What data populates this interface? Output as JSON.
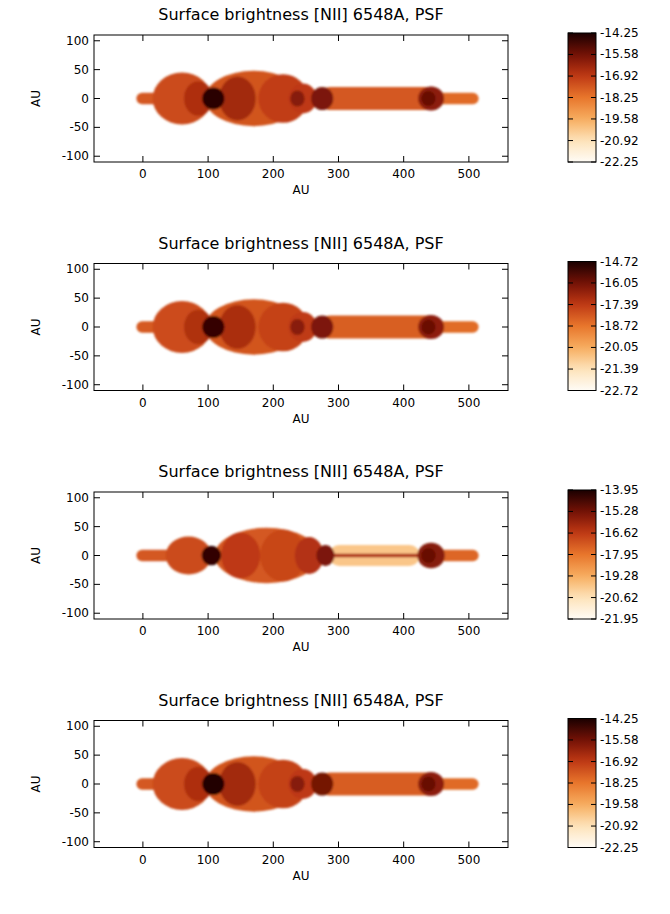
{
  "chart_data": [
    {
      "type": "heatmap",
      "title": "Surface brightness [NII] 6548A, PSF",
      "xlabel": "AU",
      "ylabel": "AU",
      "xlim": [
        -75,
        560
      ],
      "ylim": [
        -110,
        110
      ],
      "xticks": [
        0,
        100,
        200,
        300,
        400,
        500
      ],
      "yticks": [
        -100,
        -50,
        0,
        50,
        100
      ],
      "colorbar_range": [
        -22.25,
        -14.25
      ],
      "colorbar_ticks": [
        -14.25,
        -15.58,
        -16.92,
        -18.25,
        -19.58,
        -20.92,
        -22.25
      ],
      "beams": [
        {
          "x0": -10,
          "x1": 62,
          "half_width": 10,
          "value": -17.6
        },
        {
          "x0": 270,
          "x1": 455,
          "half_width": 20,
          "value": -17.6
        },
        {
          "x0": 440,
          "x1": 515,
          "half_width": 10,
          "value": -18.0
        }
      ],
      "knots": [
        {
          "x": 60,
          "y": 0,
          "rx": 45,
          "ry": 45,
          "value": -17.3
        },
        {
          "x": 170,
          "y": 0,
          "rx": 75,
          "ry": 48,
          "value": -17.5
        },
        {
          "x": 215,
          "y": 0,
          "rx": 38,
          "ry": 42,
          "value": -17.0
        },
        {
          "x": 85,
          "y": 0,
          "rx": 22,
          "ry": 30,
          "value": -16.6
        },
        {
          "x": 145,
          "y": 0,
          "rx": 28,
          "ry": 38,
          "value": -16.4
        },
        {
          "x": 245,
          "y": 0,
          "rx": 22,
          "ry": 26,
          "value": -16.9
        },
        {
          "x": 108,
          "y": 0,
          "rx": 17,
          "ry": 19,
          "value": -14.5
        },
        {
          "x": 237,
          "y": 0,
          "rx": 11,
          "ry": 14,
          "value": -15.9
        },
        {
          "x": 275,
          "y": 0,
          "rx": 17,
          "ry": 20,
          "value": -15.7
        },
        {
          "x": 442,
          "y": 0,
          "rx": 20,
          "ry": 21,
          "value": -16.0
        },
        {
          "x": 438,
          "y": 0,
          "rx": 11,
          "ry": 13,
          "value": -15.4
        }
      ]
    },
    {
      "type": "heatmap",
      "title": "Surface brightness [NII] 6548A, PSF",
      "xlabel": "AU",
      "ylabel": "AU",
      "xlim": [
        -75,
        560
      ],
      "ylim": [
        -110,
        110
      ],
      "xticks": [
        0,
        100,
        200,
        300,
        400,
        500
      ],
      "yticks": [
        -100,
        -50,
        0,
        50,
        100
      ],
      "colorbar_range": [
        -22.72,
        -14.72
      ],
      "colorbar_ticks": [
        -14.72,
        -16.05,
        -17.39,
        -18.72,
        -20.05,
        -21.39,
        -22.72
      ],
      "beams": [
        {
          "x0": -10,
          "x1": 62,
          "half_width": 10,
          "value": -18.1
        },
        {
          "x0": 270,
          "x1": 455,
          "half_width": 20,
          "value": -18.2
        },
        {
          "x0": 440,
          "x1": 515,
          "half_width": 10,
          "value": -18.5
        }
      ],
      "knots": [
        {
          "x": 60,
          "y": 0,
          "rx": 45,
          "ry": 45,
          "value": -17.8
        },
        {
          "x": 170,
          "y": 0,
          "rx": 75,
          "ry": 48,
          "value": -18.0
        },
        {
          "x": 215,
          "y": 0,
          "rx": 38,
          "ry": 42,
          "value": -17.6
        },
        {
          "x": 85,
          "y": 0,
          "rx": 22,
          "ry": 30,
          "value": -17.1
        },
        {
          "x": 145,
          "y": 0,
          "rx": 28,
          "ry": 38,
          "value": -17.0
        },
        {
          "x": 245,
          "y": 0,
          "rx": 22,
          "ry": 26,
          "value": -17.4
        },
        {
          "x": 108,
          "y": 0,
          "rx": 17,
          "ry": 19,
          "value": -15.1
        },
        {
          "x": 237,
          "y": 0,
          "rx": 11,
          "ry": 14,
          "value": -16.4
        },
        {
          "x": 275,
          "y": 0,
          "rx": 17,
          "ry": 20,
          "value": -16.2
        },
        {
          "x": 442,
          "y": 0,
          "rx": 20,
          "ry": 21,
          "value": -16.5
        },
        {
          "x": 438,
          "y": 0,
          "rx": 11,
          "ry": 13,
          "value": -15.9
        }
      ]
    },
    {
      "type": "heatmap",
      "title": "Surface brightness [NII] 6548A, PSF",
      "xlabel": "AU",
      "ylabel": "AU",
      "xlim": [
        -75,
        560
      ],
      "ylim": [
        -110,
        110
      ],
      "xticks": [
        0,
        100,
        200,
        300,
        400,
        500
      ],
      "yticks": [
        -100,
        -50,
        0,
        50,
        100
      ],
      "colorbar_range": [
        -21.95,
        -13.95
      ],
      "colorbar_ticks": [
        -13.95,
        -15.28,
        -16.62,
        -17.95,
        -19.28,
        -20.62,
        -21.95
      ],
      "beams": [
        {
          "x0": -10,
          "x1": 45,
          "half_width": 10,
          "value": -17.3
        },
        {
          "x0": 285,
          "x1": 425,
          "half_width": 18,
          "value": -19.9
        },
        {
          "x0": 285,
          "x1": 425,
          "half_width": 3,
          "value": -16.3
        },
        {
          "x0": 440,
          "x1": 515,
          "half_width": 10,
          "value": -17.6
        }
      ],
      "knots": [
        {
          "x": 70,
          "y": 0,
          "rx": 35,
          "ry": 33,
          "value": -17.0
        },
        {
          "x": 190,
          "y": 0,
          "rx": 80,
          "ry": 48,
          "value": -17.3
        },
        {
          "x": 215,
          "y": 0,
          "rx": 35,
          "ry": 45,
          "value": -16.9
        },
        {
          "x": 150,
          "y": 0,
          "rx": 30,
          "ry": 40,
          "value": -16.6
        },
        {
          "x": 255,
          "y": 0,
          "rx": 22,
          "ry": 32,
          "value": -16.4
        },
        {
          "x": 105,
          "y": 0,
          "rx": 15,
          "ry": 17,
          "value": -14.3
        },
        {
          "x": 280,
          "y": 0,
          "rx": 14,
          "ry": 18,
          "value": -15.4
        },
        {
          "x": 442,
          "y": 0,
          "rx": 21,
          "ry": 22,
          "value": -15.6
        },
        {
          "x": 438,
          "y": 0,
          "rx": 11,
          "ry": 13,
          "value": -15.1
        }
      ]
    },
    {
      "type": "heatmap",
      "title": "Surface brightness [NII] 6548A, PSF",
      "xlabel": "AU",
      "ylabel": "AU",
      "xlim": [
        -75,
        560
      ],
      "ylim": [
        -110,
        110
      ],
      "xticks": [
        0,
        100,
        200,
        300,
        400,
        500
      ],
      "yticks": [
        -100,
        -50,
        0,
        50,
        100
      ],
      "colorbar_range": [
        -22.25,
        -14.25
      ],
      "colorbar_ticks": [
        -14.25,
        -15.58,
        -16.92,
        -18.25,
        -19.58,
        -20.92,
        -22.25
      ],
      "beams": [
        {
          "x0": -10,
          "x1": 62,
          "half_width": 10,
          "value": -17.6
        },
        {
          "x0": 270,
          "x1": 455,
          "half_width": 20,
          "value": -17.7
        },
        {
          "x0": 440,
          "x1": 515,
          "half_width": 10,
          "value": -18.0
        }
      ],
      "knots": [
        {
          "x": 60,
          "y": 0,
          "rx": 45,
          "ry": 45,
          "value": -17.3
        },
        {
          "x": 170,
          "y": 0,
          "rx": 75,
          "ry": 48,
          "value": -17.5
        },
        {
          "x": 215,
          "y": 0,
          "rx": 38,
          "ry": 42,
          "value": -17.1
        },
        {
          "x": 85,
          "y": 0,
          "rx": 22,
          "ry": 30,
          "value": -16.6
        },
        {
          "x": 145,
          "y": 0,
          "rx": 28,
          "ry": 38,
          "value": -16.4
        },
        {
          "x": 245,
          "y": 0,
          "rx": 22,
          "ry": 26,
          "value": -16.9
        },
        {
          "x": 108,
          "y": 0,
          "rx": 17,
          "ry": 19,
          "value": -14.4
        },
        {
          "x": 237,
          "y": 0,
          "rx": 11,
          "ry": 14,
          "value": -15.9
        },
        {
          "x": 275,
          "y": 0,
          "rx": 17,
          "ry": 20,
          "value": -15.6
        },
        {
          "x": 442,
          "y": 0,
          "rx": 20,
          "ry": 21,
          "value": -16.0
        },
        {
          "x": 438,
          "y": 0,
          "rx": 11,
          "ry": 13,
          "value": -15.4
        }
      ]
    }
  ]
}
